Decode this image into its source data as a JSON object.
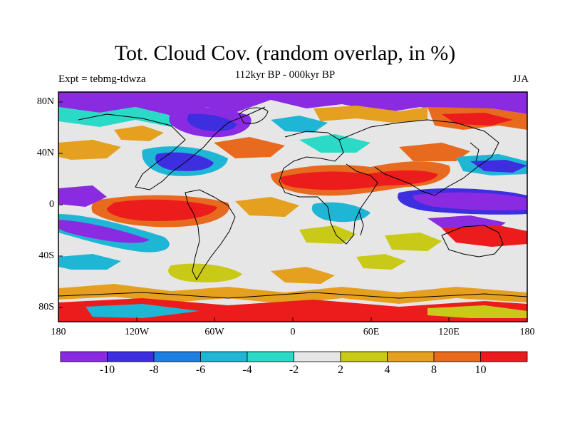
{
  "map": {
    "title": "Tot. Cloud Cov. (random overlap, in %)",
    "subtitle": "112kyr BP - 000kyr BP",
    "expt_label": "Expt = tebmg-tdwza",
    "season_label": "JJA",
    "lat_labels": [
      "80N",
      "40N",
      "0",
      "40S",
      "80S"
    ],
    "lon_labels": [
      "180",
      "120W",
      "60W",
      "0",
      "60E",
      "120E",
      "180"
    ]
  },
  "colorbar": {
    "labels": [
      "-10",
      "-8",
      "-6",
      "-4",
      "-2",
      "2",
      "4",
      "8",
      "10"
    ],
    "colors": [
      "#8a2be2",
      "#3d2ee0",
      "#1f7fe0",
      "#1fb6d6",
      "#2bd9c7",
      "#e6e6e6",
      "#c9c917",
      "#e6a01f",
      "#e86a1f",
      "#ec1c1c"
    ]
  }
}
